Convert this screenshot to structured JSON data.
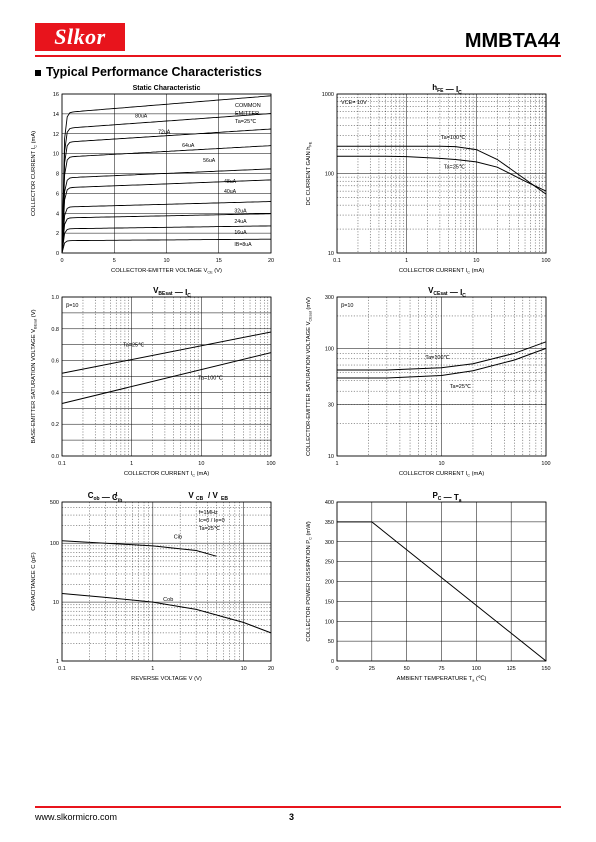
{
  "header": {
    "logo_text": "Slkor",
    "part_number": "MMBTA44",
    "accent": "#e8141c"
  },
  "section_title": "Typical Performance Characteristics",
  "footer": {
    "url": "www.slkormicro.com",
    "page": "3"
  },
  "chart_data": [
    {
      "id": "static",
      "type": "line",
      "title": "Static Characteristic",
      "xlabel": "COLLECTOR-EMITTER VOLTAGE",
      "xlabel_sym": "V",
      "xlabel_sub": "CE",
      "xlabel_unit": "(V)",
      "ylabel": "COLLECTOR CURRENT",
      "ylabel_sym": "I",
      "ylabel_sub": "C",
      "ylabel_unit": "(mA)",
      "xlim": [
        0,
        20
      ],
      "ylim": [
        0,
        16
      ],
      "xscale": "linear",
      "yscale": "linear",
      "xticks": [
        "0",
        "5",
        "10",
        "15",
        "20"
      ],
      "yticks": [
        "0",
        "2",
        "4",
        "6",
        "8",
        "10",
        "12",
        "14",
        "16"
      ],
      "note": [
        "COMMON",
        "EMITTER",
        "Ta=25℃"
      ],
      "series": [
        {
          "name": "IB=8uA",
          "values": [
            1.25
          ]
        },
        {
          "name": "16uA",
          "values": [
            2.45
          ]
        },
        {
          "name": "24uA",
          "values": [
            3.55
          ]
        },
        {
          "name": "32uA",
          "values": [
            4.65
          ]
        },
        {
          "name": "40uA",
          "values": [
            6.6
          ]
        },
        {
          "name": "48uA",
          "values": [
            7.6
          ]
        },
        {
          "name": "56uA",
          "values": [
            9.7
          ]
        },
        {
          "name": "64uA",
          "values": [
            11.2
          ]
        },
        {
          "name": "72uA",
          "values": [
            12.6
          ]
        },
        {
          "name": "80uA",
          "values": [
            14.2
          ]
        }
      ]
    },
    {
      "id": "hfe",
      "type": "line",
      "title": "hFE — IC",
      "xlabel": "COLLECTOR CURRENT",
      "xlabel_sym": "I",
      "xlabel_sub": "C",
      "xlabel_unit": "(mA)",
      "ylabel": "DC CURRENT GAIN",
      "ylabel_sym": "h",
      "ylabel_sub": "FE",
      "xlim": [
        0.1,
        100
      ],
      "ylim": [
        10,
        1000
      ],
      "xscale": "log",
      "yscale": "log",
      "xticks": [
        "0.1",
        "1",
        "10",
        "100"
      ],
      "yticks": [
        "10",
        "100",
        "1000"
      ],
      "note": [
        "VCE= 10V"
      ],
      "series": [
        {
          "name": "Ta=100℃",
          "x": [
            0.1,
            0.5,
            1,
            3,
            5,
            10,
            20,
            50,
            100
          ],
          "y": [
            220,
            220,
            220,
            220,
            218,
            200,
            150,
            85,
            55
          ]
        },
        {
          "name": "Ta=25℃",
          "x": [
            0.1,
            0.5,
            1,
            3,
            5,
            10,
            20,
            50,
            100
          ],
          "y": [
            165,
            165,
            163,
            155,
            150,
            140,
            120,
            80,
            60
          ]
        }
      ]
    },
    {
      "id": "vbesat",
      "type": "line",
      "title": "VBEsat — IC",
      "xlabel": "COLLECTOR CURRENT",
      "xlabel_sym": "I",
      "xlabel_sub": "C",
      "xlabel_unit": "(mA)",
      "ylabel": "BASE-EMITTER SATURATION VOLTAGE",
      "ylabel_sym": "V",
      "ylabel_sub": "BEsat",
      "ylabel_unit": "(V)",
      "xlim": [
        0.1,
        100
      ],
      "ylim": [
        0,
        1
      ],
      "xscale": "log",
      "yscale": "linear",
      "xticks": [
        "0.1",
        "1",
        "10",
        "100"
      ],
      "yticks": [
        "0.0",
        "0.2",
        "0.4",
        "0.6",
        "0.8",
        "1.0"
      ],
      "note": [
        "β=10"
      ],
      "series": [
        {
          "name": "Ta=25℃",
          "x": [
            0.1,
            100
          ],
          "y": [
            0.52,
            0.78
          ]
        },
        {
          "name": "Ta=100℃",
          "x": [
            0.1,
            100
          ],
          "y": [
            0.33,
            0.65
          ]
        }
      ]
    },
    {
      "id": "vcesat",
      "type": "line",
      "title": "VCEsat — IC",
      "xlabel": "COLLECTOR CURRENT",
      "xlabel_sym": "I",
      "xlabel_sub": "C",
      "xlabel_unit": "(mA)",
      "ylabel": "COLLECTOR-EMITTER SATURATION VOLTAGE",
      "ylabel_sym": "V",
      "ylabel_sub": "CEsat",
      "ylabel_unit": "(mV)",
      "xlim": [
        1,
        100
      ],
      "ylim": [
        10,
        300
      ],
      "xscale": "log",
      "yscale": "log",
      "xticks": [
        "1",
        "10",
        "100"
      ],
      "yticks": [
        "10",
        "30",
        "100",
        "300"
      ],
      "note": [
        "β=10"
      ],
      "series": [
        {
          "name": "Ta=100℃",
          "x": [
            1,
            3,
            10,
            20,
            50,
            100
          ],
          "y": [
            63,
            63,
            66,
            72,
            90,
            115
          ]
        },
        {
          "name": "Ta=25℃",
          "x": [
            1,
            3,
            10,
            20,
            50,
            100
          ],
          "y": [
            53,
            53,
            56,
            62,
            78,
            100
          ]
        }
      ]
    },
    {
      "id": "cap",
      "type": "line",
      "title": "Cob / Cib — VCB / VEB",
      "xlabel": "REVERSE VOLTAGE",
      "xlabel_sym": "V",
      "xlabel_sub": "",
      "xlabel_unit": "(V)",
      "ylabel": "CAPACITANCE",
      "ylabel_sym": "C",
      "ylabel_sub": "",
      "ylabel_unit": "(pF)",
      "xlim": [
        0.1,
        20
      ],
      "ylim": [
        1,
        500
      ],
      "xscale": "log",
      "yscale": "log",
      "xticks": [
        "0.1",
        "1",
        "10",
        "20"
      ],
      "yticks": [
        "1",
        "10",
        "100",
        "500"
      ],
      "note": [
        "f=1MHz",
        "Ic=0 / Ie=0",
        "Ta=25℃"
      ],
      "series": [
        {
          "name": "Cib",
          "x": [
            0.1,
            0.3,
            1,
            3,
            5
          ],
          "y": [
            110,
            100,
            90,
            75,
            60
          ]
        },
        {
          "name": "Cob",
          "x": [
            0.1,
            0.3,
            1,
            3,
            10,
            20
          ],
          "y": [
            14,
            12,
            10,
            7.5,
            4.5,
            3
          ]
        }
      ]
    },
    {
      "id": "pc",
      "type": "line",
      "title": "PC — Ta",
      "xlabel": "AMBIENT TEMPERATURE",
      "xlabel_sym": "T",
      "xlabel_sub": "a",
      "xlabel_unit": "(℃)",
      "ylabel": "COLLECTOR POWER DISSIPATION",
      "ylabel_sym": "P",
      "ylabel_sub": "C",
      "ylabel_unit": "(mW)",
      "xlim": [
        0,
        150
      ],
      "ylim": [
        0,
        400
      ],
      "xscale": "linear",
      "yscale": "linear",
      "xticks": [
        "0",
        "25",
        "50",
        "75",
        "100",
        "125",
        "150"
      ],
      "yticks": [
        "0",
        "50",
        "100",
        "150",
        "200",
        "250",
        "300",
        "350",
        "400"
      ],
      "series": [
        {
          "name": "",
          "x": [
            0,
            25,
            150
          ],
          "y": [
            350,
            350,
            0
          ]
        }
      ]
    }
  ]
}
